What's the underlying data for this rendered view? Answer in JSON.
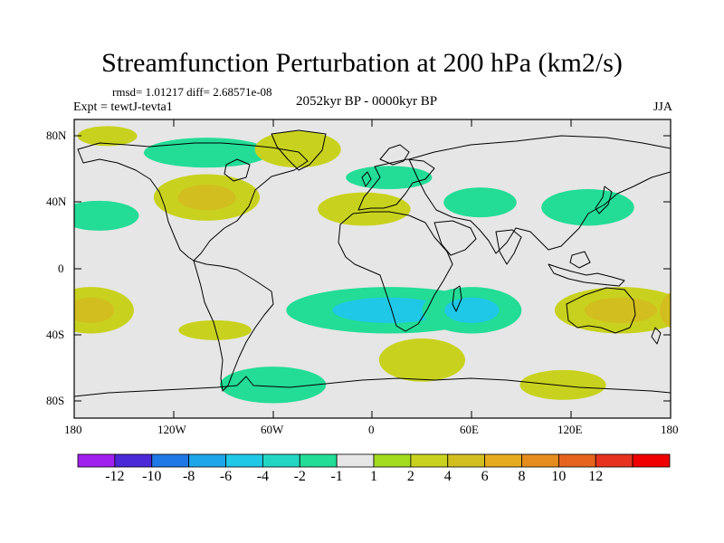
{
  "figure": {
    "title": "Streamfunction Perturbation at 200 hPa (km2/s)",
    "stats": "rmsd= 1.01217 diff= 2.68571e-08",
    "experiment": "Expt = tewtJ-tevta1",
    "period": "2052kyr BP - 0000kyr BP",
    "season": "JJA"
  },
  "map": {
    "lat_ticks": [
      "80N",
      "40N",
      "0",
      "40S",
      "80S"
    ],
    "lon_ticks": [
      "180",
      "120W",
      "60W",
      "0",
      "60E",
      "120E",
      "180"
    ],
    "background_color": "#e6e6e6",
    "coastline_color": "#000000"
  },
  "colorbar": {
    "colors": [
      "#a020f0",
      "#4b28d8",
      "#1e78e6",
      "#1ea6ea",
      "#1ec8e6",
      "#23d6c3",
      "#23dc96",
      "#e6e6e6",
      "#a2dc1e",
      "#c8d21e",
      "#d2be1e",
      "#e6aa1e",
      "#e68c1e",
      "#e6641e",
      "#e6321e",
      "#f00000"
    ],
    "labels": [
      "-12",
      "-10",
      "-8",
      "-6",
      "-4",
      "-2",
      "-1",
      "1",
      "2",
      "4",
      "6",
      "8",
      "10",
      "12"
    ]
  },
  "chart_data": {
    "type": "contour_map",
    "variable": "Streamfunction perturbation",
    "level": "200 hPa",
    "units": "km2/s",
    "lon_range": [
      -180,
      180
    ],
    "lat_range": [
      -90,
      90
    ],
    "contour_levels": [
      -12,
      -10,
      -8,
      -6,
      -4,
      -2,
      -1,
      1,
      2,
      4,
      6,
      8,
      10,
      12
    ],
    "features": [
      {
        "region": "North Atlantic / Canada",
        "lon": -100,
        "lat": 70,
        "sign": "negative",
        "value": -1
      },
      {
        "region": "Arctic / Greenland",
        "lon": -45,
        "lat": 72,
        "sign": "positive",
        "value": 2
      },
      {
        "region": "North America",
        "lon": -100,
        "lat": 43,
        "sign": "positive",
        "value": 4
      },
      {
        "region": "North Pacific",
        "lon": -165,
        "lat": 32,
        "sign": "negative",
        "value": -1
      },
      {
        "region": "North Africa / Mediterranean",
        "lon": -5,
        "lat": 36,
        "sign": "positive",
        "value": 2
      },
      {
        "region": "Europe",
        "lon": 10,
        "lat": 55,
        "sign": "negative",
        "value": -1
      },
      {
        "region": "Central Asia",
        "lon": 65,
        "lat": 40,
        "sign": "negative",
        "value": -1
      },
      {
        "region": "East Asia / West Pacific",
        "lon": 130,
        "lat": 37,
        "sign": "negative",
        "value": -1
      },
      {
        "region": "South Atlantic / Southern Africa",
        "lon": 10,
        "lat": -25,
        "sign": "negative",
        "value": -4
      },
      {
        "region": "Indian Ocean",
        "lon": 60,
        "lat": -25,
        "sign": "negative",
        "value": -4
      },
      {
        "region": "South Pacific (west of date line)",
        "lon": -170,
        "lat": -25,
        "sign": "positive",
        "value": 4
      },
      {
        "region": "Australia",
        "lon": 150,
        "lat": -25,
        "sign": "positive",
        "value": 4
      },
      {
        "region": "Southeast Pacific",
        "lon": -95,
        "lat": -37,
        "sign": "positive",
        "value": 2
      },
      {
        "region": "South Atlantic (high latitude)",
        "lon": 30,
        "lat": -55,
        "sign": "positive",
        "value": 2
      },
      {
        "region": "Southern Ocean (south of Australia)",
        "lon": 115,
        "lat": -70,
        "sign": "positive",
        "value": 2
      },
      {
        "region": "Antarctic Peninsula",
        "lon": -60,
        "lat": -70,
        "sign": "negative",
        "value": -1
      },
      {
        "region": "North Pacific high latitude",
        "lon": -160,
        "lat": 80,
        "sign": "positive",
        "value": 2
      }
    ]
  }
}
